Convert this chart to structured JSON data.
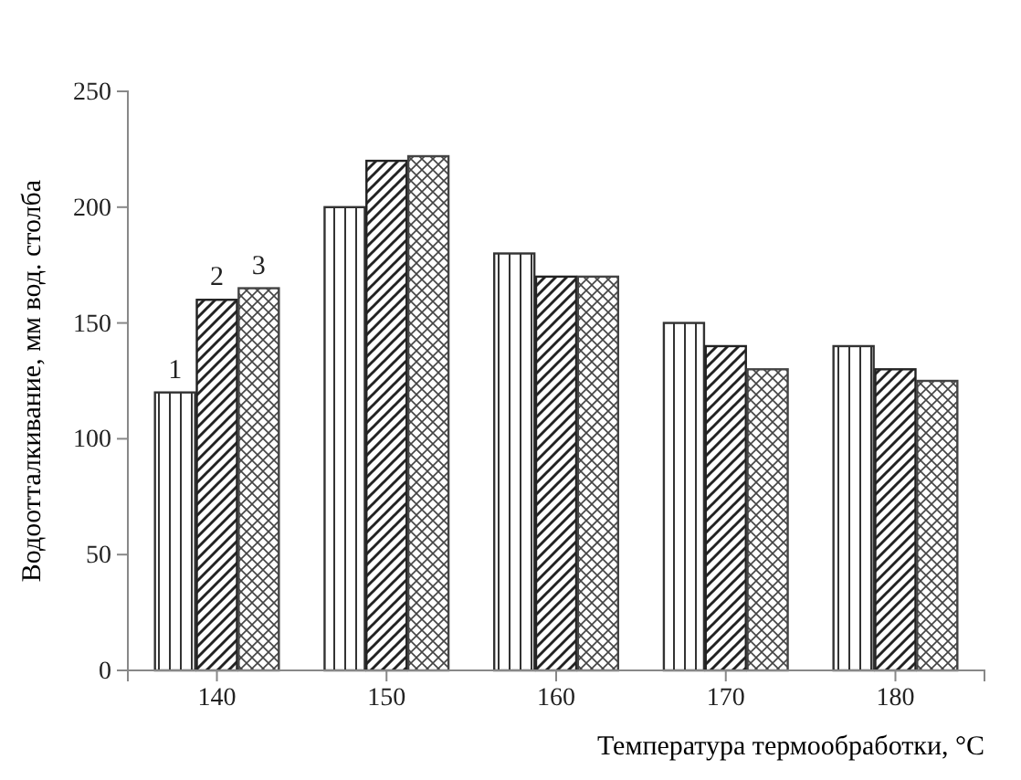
{
  "chart_data": {
    "type": "bar",
    "xlabel": "Температура термообработки, °C",
    "ylabel": "Водоотталкивание, мм вод. столба",
    "categories": [
      "140",
      "150",
      "160",
      "170",
      "180"
    ],
    "series": [
      {
        "name": "1",
        "color": "#333333",
        "values": [
          120,
          200,
          180,
          150,
          140
        ]
      },
      {
        "name": "2",
        "color": "#222222",
        "values": [
          160,
          220,
          170,
          140,
          130
        ]
      },
      {
        "name": "3",
        "color": "#444444",
        "values": [
          165,
          222,
          170,
          130,
          125
        ]
      }
    ],
    "ylim": [
      0,
      250
    ],
    "yticks": [
      0,
      50,
      100,
      150,
      200,
      250
    ],
    "grid": false
  }
}
